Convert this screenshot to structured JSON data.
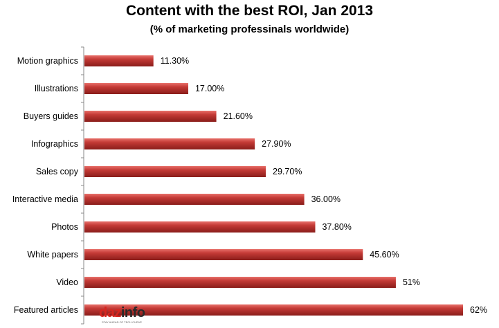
{
  "chart_data": {
    "type": "bar",
    "orientation": "horizontal",
    "title": "Content with the best ROI, Jan 2013",
    "subtitle": "(% of marketing professinals worldwide)",
    "categories": [
      "Motion graphics",
      "Illustrations",
      "Buyers guides",
      "Infographics",
      "Sales copy",
      "Interactive media",
      "Photos",
      "White papers",
      "Video",
      "Featured articles"
    ],
    "values": [
      11.3,
      17.0,
      21.6,
      27.9,
      29.7,
      36.0,
      37.8,
      45.6,
      51,
      62
    ],
    "value_labels": [
      "11.30%",
      "17.00%",
      "21.60%",
      "27.90%",
      "29.70%",
      "36.00%",
      "37.80%",
      "45.60%",
      "51%",
      "62%"
    ],
    "xlim": [
      0,
      62
    ],
    "grid": false,
    "colors": {
      "bar": "#c43a36",
      "bar_highlight": "#e8716b",
      "bar_shadow": "#8a1d1a"
    }
  },
  "logo": {
    "part1": "daz",
    "part2": "info",
    "tagline": "STAY AHEAD OF TECH CURVE"
  }
}
